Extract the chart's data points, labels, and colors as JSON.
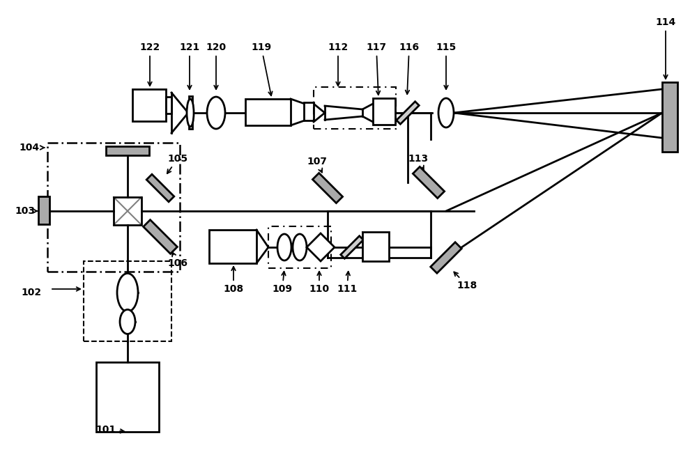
{
  "bg_color": "#ffffff",
  "lw_main": 2.0,
  "lw_thin": 1.5,
  "gray_mirror": "#aaaaaa",
  "gray_bs": "#bbbbbb",
  "label_fontsize": 10
}
